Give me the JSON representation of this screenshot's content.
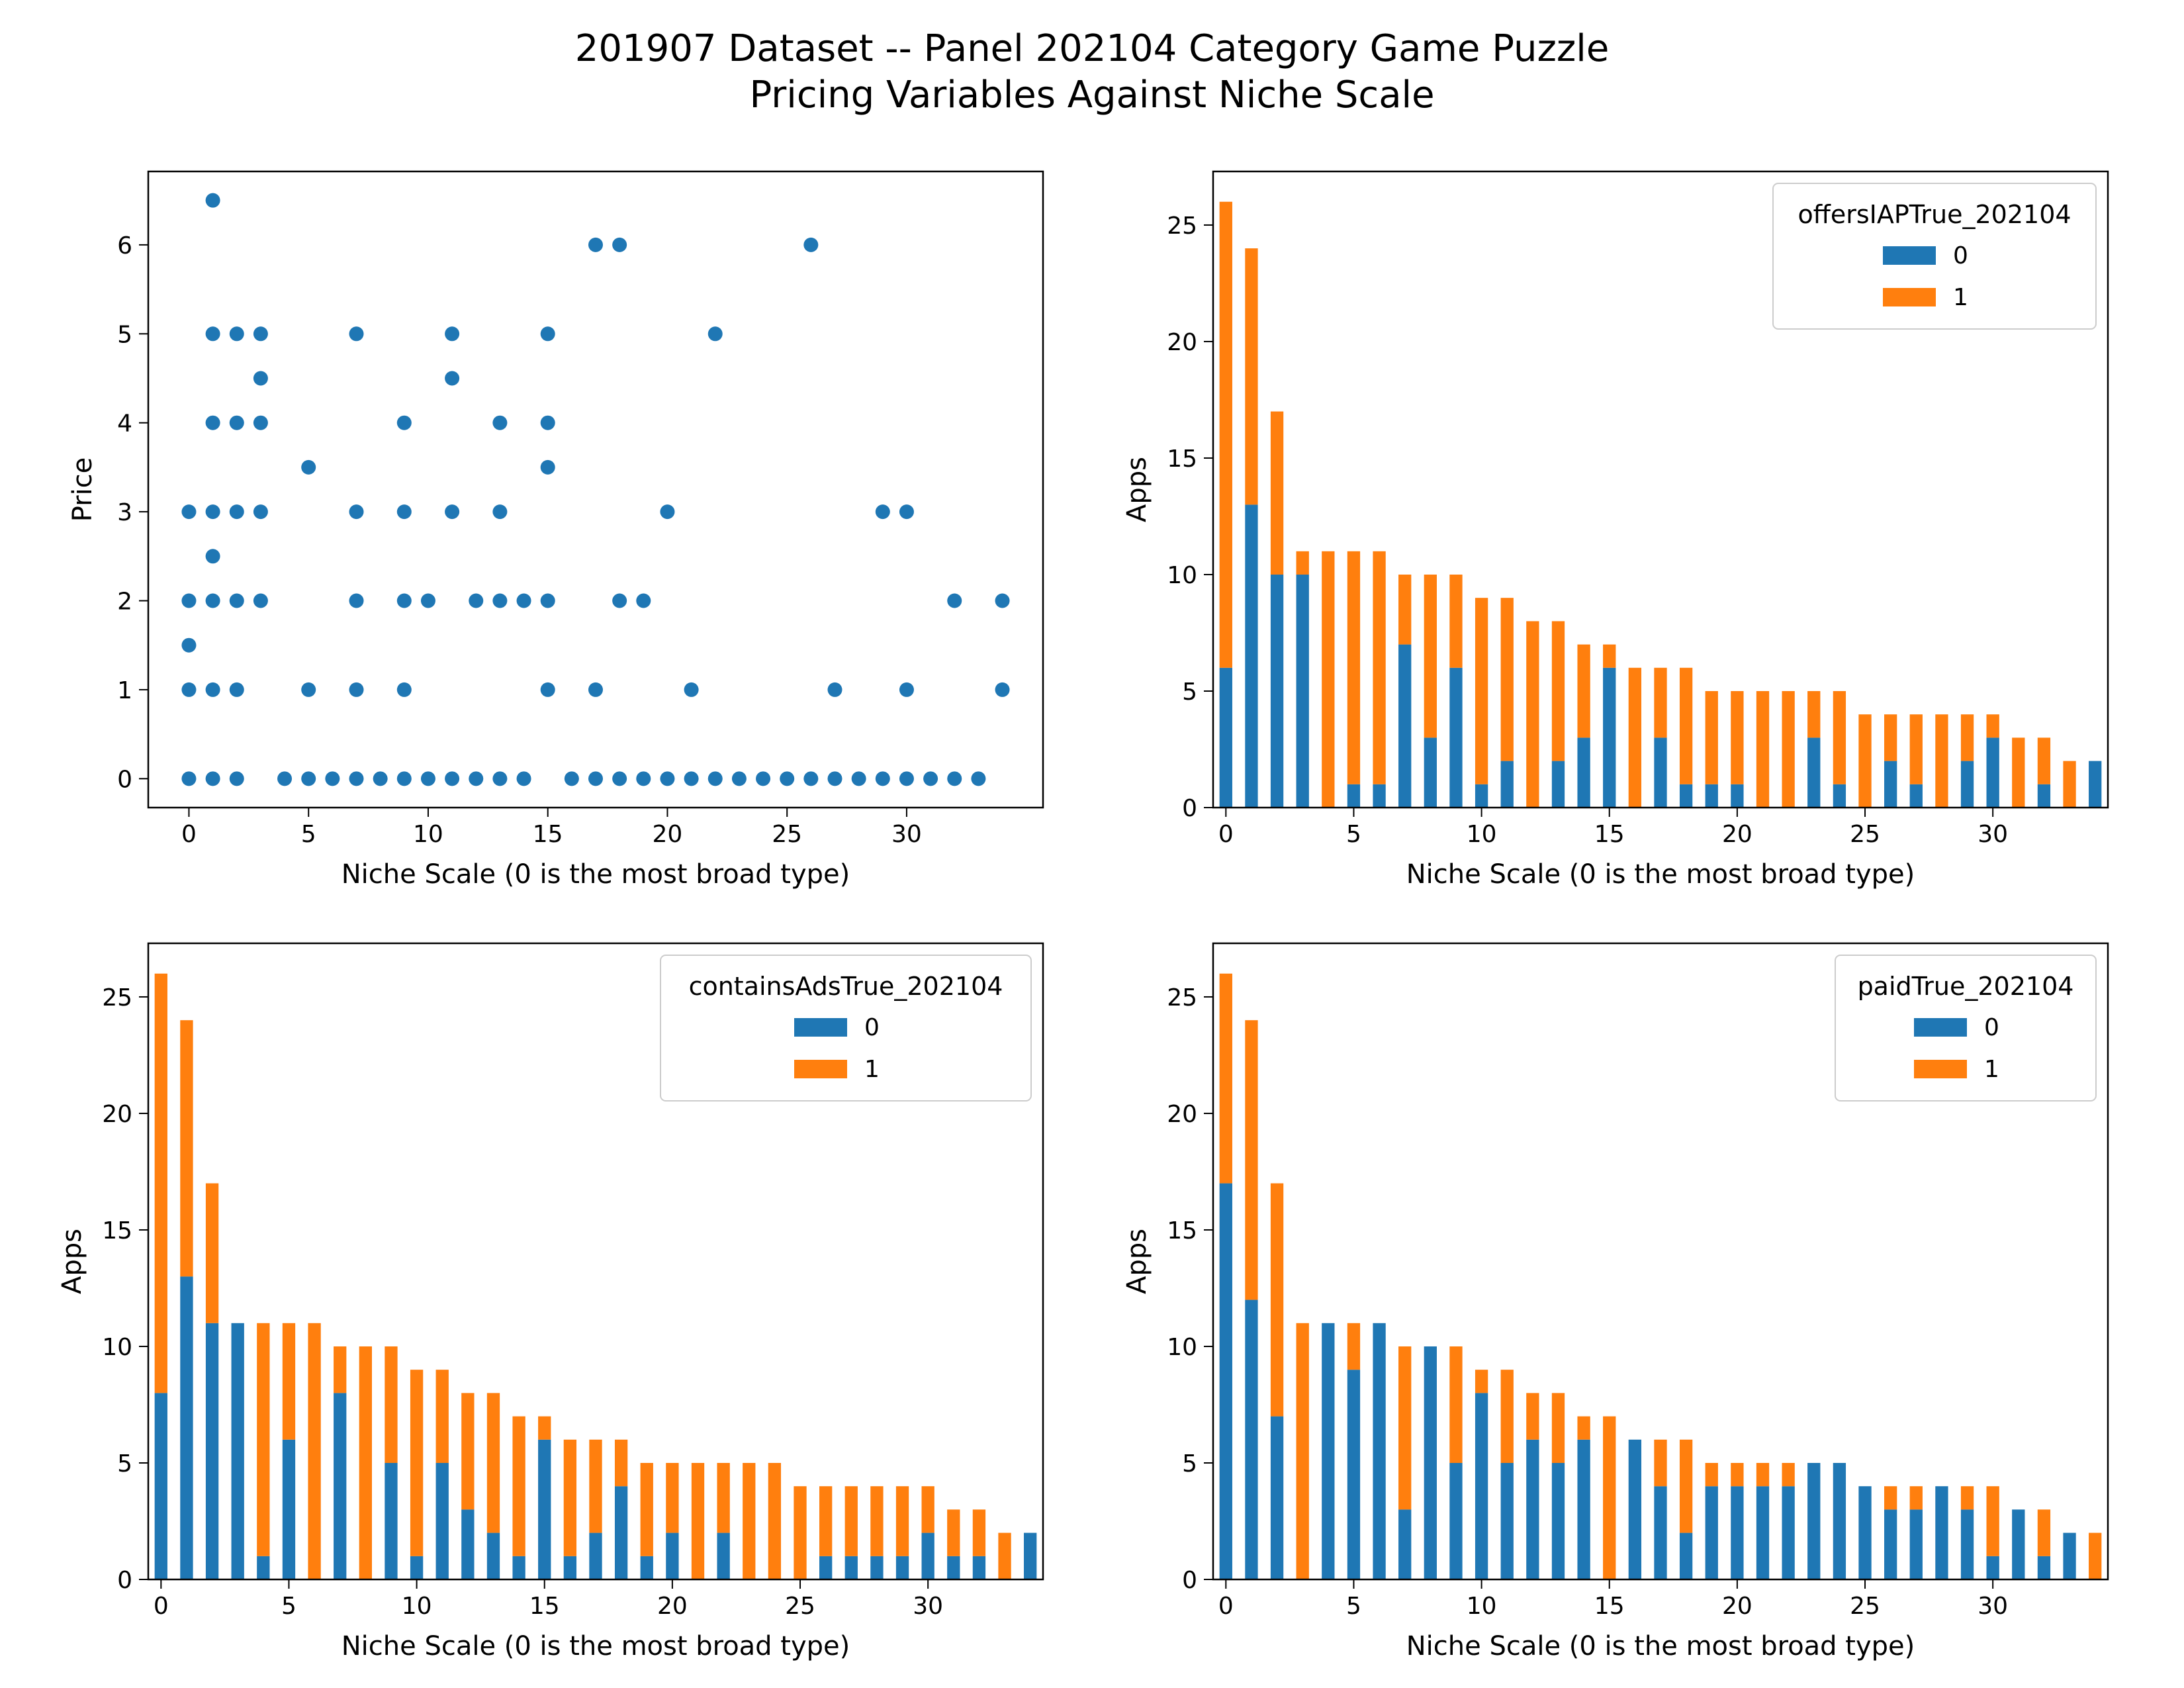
{
  "figure": {
    "title_line1": "201907 Dataset -- Panel 202104 Category Game Puzzle",
    "title_line2": "Pricing Variables Against Niche Scale"
  },
  "colors": {
    "series0": "#1f77b4",
    "series1": "#ff7f0e"
  },
  "chart_data": [
    {
      "type": "scatter",
      "title": "",
      "xlabel": "Niche Scale (0 is the most broad type)",
      "ylabel": "Price",
      "xlim": [
        -1.7,
        35.7
      ],
      "ylim": [
        -0.325,
        6.825
      ],
      "xticks": [
        0,
        5,
        10,
        15,
        20,
        25,
        30
      ],
      "yticks": [
        0,
        1,
        2,
        3,
        4,
        5,
        6
      ],
      "points": [
        [
          0,
          0
        ],
        [
          0,
          1
        ],
        [
          0,
          1.5
        ],
        [
          0,
          2
        ],
        [
          0,
          3
        ],
        [
          1,
          0
        ],
        [
          1,
          1
        ],
        [
          1,
          2
        ],
        [
          1,
          2.5
        ],
        [
          1,
          3
        ],
        [
          1,
          4
        ],
        [
          1,
          5
        ],
        [
          1,
          6.5
        ],
        [
          2,
          0
        ],
        [
          2,
          1
        ],
        [
          2,
          2
        ],
        [
          2,
          3
        ],
        [
          2,
          4
        ],
        [
          2,
          5
        ],
        [
          3,
          2
        ],
        [
          3,
          3
        ],
        [
          3,
          4
        ],
        [
          3,
          4.5
        ],
        [
          3,
          5
        ],
        [
          4,
          0
        ],
        [
          5,
          0
        ],
        [
          5,
          1
        ],
        [
          5,
          3.5
        ],
        [
          6,
          0
        ],
        [
          7,
          0
        ],
        [
          7,
          1
        ],
        [
          7,
          2
        ],
        [
          7,
          3
        ],
        [
          7,
          5
        ],
        [
          8,
          0
        ],
        [
          9,
          0
        ],
        [
          9,
          1
        ],
        [
          9,
          2
        ],
        [
          9,
          3
        ],
        [
          9,
          4
        ],
        [
          10,
          0
        ],
        [
          10,
          2
        ],
        [
          11,
          0
        ],
        [
          11,
          3
        ],
        [
          11,
          4.5
        ],
        [
          11,
          5
        ],
        [
          12,
          0
        ],
        [
          12,
          2
        ],
        [
          13,
          0
        ],
        [
          13,
          2
        ],
        [
          13,
          3
        ],
        [
          13,
          4
        ],
        [
          14,
          0
        ],
        [
          14,
          2
        ],
        [
          15,
          1
        ],
        [
          15,
          2
        ],
        [
          15,
          3.5
        ],
        [
          15,
          4
        ],
        [
          15,
          5
        ],
        [
          16,
          0
        ],
        [
          17,
          0
        ],
        [
          17,
          1
        ],
        [
          17,
          6
        ],
        [
          18,
          0
        ],
        [
          18,
          2
        ],
        [
          18,
          6
        ],
        [
          19,
          0
        ],
        [
          19,
          2
        ],
        [
          20,
          0
        ],
        [
          20,
          3
        ],
        [
          21,
          0
        ],
        [
          21,
          1
        ],
        [
          22,
          0
        ],
        [
          22,
          5
        ],
        [
          23,
          0
        ],
        [
          24,
          0
        ],
        [
          25,
          0
        ],
        [
          26,
          0
        ],
        [
          26,
          6
        ],
        [
          27,
          0
        ],
        [
          27,
          1
        ],
        [
          28,
          0
        ],
        [
          29,
          0
        ],
        [
          29,
          3
        ],
        [
          30,
          0
        ],
        [
          30,
          1
        ],
        [
          30,
          3
        ],
        [
          31,
          0
        ],
        [
          32,
          0
        ],
        [
          32,
          2
        ],
        [
          33,
          0
        ],
        [
          34,
          1
        ],
        [
          34,
          2
        ]
      ]
    },
    {
      "type": "bar",
      "stacked": true,
      "title": "",
      "xlabel": "Niche Scale (0 is the most broad type)",
      "ylabel": "Apps",
      "ylim": [
        0,
        27.3
      ],
      "yticks": [
        0,
        5,
        10,
        15,
        20,
        25
      ],
      "xticks": [
        0,
        5,
        10,
        15,
        20,
        25,
        30
      ],
      "legend_title": "offersIAPTrue_202104",
      "legend_position": "top-right",
      "categories": [
        0,
        1,
        2,
        3,
        4,
        5,
        6,
        7,
        8,
        9,
        10,
        11,
        12,
        13,
        14,
        15,
        16,
        17,
        18,
        19,
        20,
        21,
        22,
        23,
        24,
        25,
        26,
        27,
        28,
        29,
        30,
        31,
        32,
        33,
        34
      ],
      "series": [
        {
          "name": "0",
          "values": [
            6,
            13,
            10,
            10,
            0,
            1,
            1,
            7,
            3,
            6,
            1,
            2,
            0,
            2,
            3,
            6,
            0,
            3,
            1,
            1,
            1,
            0,
            0,
            3,
            1,
            0,
            2,
            1,
            0,
            2,
            3,
            0,
            1,
            0,
            2
          ]
        },
        {
          "name": "1",
          "values": [
            20,
            11,
            7,
            1,
            11,
            10,
            10,
            3,
            7,
            4,
            8,
            7,
            8,
            6,
            4,
            1,
            6,
            3,
            5,
            4,
            4,
            5,
            5,
            2,
            4,
            4,
            2,
            3,
            4,
            2,
            1,
            3,
            2,
            2,
            0
          ]
        }
      ]
    },
    {
      "type": "bar",
      "stacked": true,
      "title": "",
      "xlabel": "Niche Scale (0 is the most broad type)",
      "ylabel": "Apps",
      "ylim": [
        0,
        27.3
      ],
      "yticks": [
        0,
        5,
        10,
        15,
        20,
        25
      ],
      "xticks": [
        0,
        5,
        10,
        15,
        20,
        25,
        30
      ],
      "legend_title": "containsAdsTrue_202104",
      "legend_position": "top-right",
      "categories": [
        0,
        1,
        2,
        3,
        4,
        5,
        6,
        7,
        8,
        9,
        10,
        11,
        12,
        13,
        14,
        15,
        16,
        17,
        18,
        19,
        20,
        21,
        22,
        23,
        24,
        25,
        26,
        27,
        28,
        29,
        30,
        31,
        32,
        33,
        34
      ],
      "series": [
        {
          "name": "0",
          "values": [
            8,
            13,
            11,
            11,
            1,
            6,
            0,
            8,
            0,
            5,
            1,
            5,
            3,
            2,
            1,
            6,
            1,
            2,
            4,
            1,
            2,
            0,
            2,
            0,
            0,
            0,
            1,
            1,
            1,
            1,
            2,
            1,
            1,
            0,
            2
          ]
        },
        {
          "name": "1",
          "values": [
            18,
            11,
            6,
            0,
            10,
            5,
            11,
            2,
            10,
            5,
            8,
            4,
            5,
            6,
            6,
            1,
            5,
            4,
            2,
            4,
            3,
            5,
            3,
            5,
            5,
            4,
            3,
            3,
            3,
            3,
            2,
            2,
            2,
            2,
            0
          ]
        }
      ]
    },
    {
      "type": "bar",
      "stacked": true,
      "title": "",
      "xlabel": "Niche Scale (0 is the most broad type)",
      "ylabel": "Apps",
      "ylim": [
        0,
        27.3
      ],
      "yticks": [
        0,
        5,
        10,
        15,
        20,
        25
      ],
      "xticks": [
        0,
        5,
        10,
        15,
        20,
        25,
        30
      ],
      "legend_title": "paidTrue_202104",
      "legend_position": "top-right",
      "categories": [
        0,
        1,
        2,
        3,
        4,
        5,
        6,
        7,
        8,
        9,
        10,
        11,
        12,
        13,
        14,
        15,
        16,
        17,
        18,
        19,
        20,
        21,
        22,
        23,
        24,
        25,
        26,
        27,
        28,
        29,
        30,
        31,
        32,
        33,
        34
      ],
      "series": [
        {
          "name": "0",
          "values": [
            17,
            12,
            7,
            0,
            11,
            9,
            11,
            3,
            10,
            5,
            8,
            5,
            6,
            5,
            6,
            0,
            6,
            4,
            2,
            4,
            4,
            4,
            4,
            5,
            5,
            4,
            3,
            3,
            4,
            3,
            1,
            3,
            1,
            2,
            0
          ]
        },
        {
          "name": "1",
          "values": [
            9,
            12,
            10,
            11,
            0,
            2,
            0,
            7,
            0,
            5,
            1,
            4,
            2,
            3,
            1,
            7,
            0,
            2,
            4,
            1,
            1,
            1,
            1,
            0,
            0,
            0,
            1,
            1,
            0,
            1,
            3,
            0,
            2,
            0,
            2
          ]
        }
      ]
    }
  ]
}
